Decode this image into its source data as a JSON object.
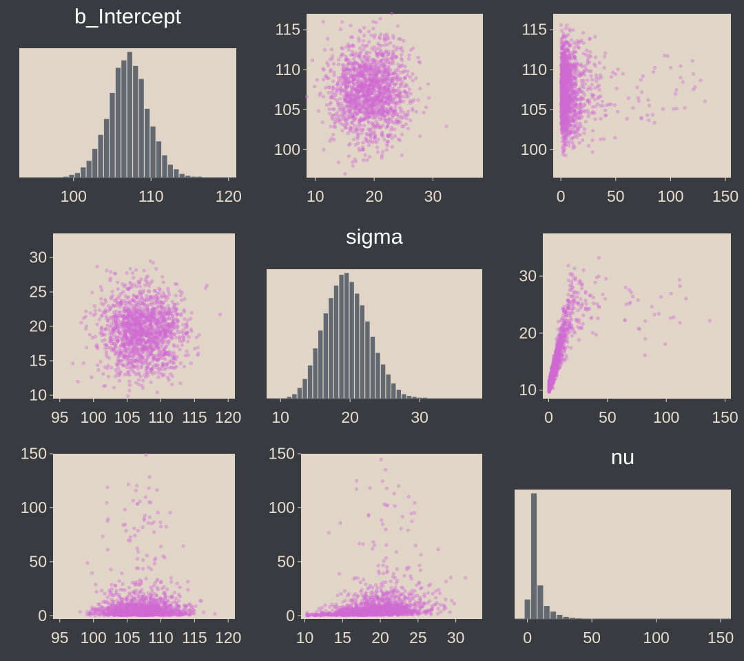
{
  "style": {
    "background": "#383b40",
    "panel_fill": "#e1d5c8",
    "bar_fill": "#636970",
    "point_color": "#d06bd3",
    "text_color": "#e6dccf",
    "title_color": "#ffffff"
  },
  "chart_data": [
    {
      "id": "hist-b-intercept",
      "type": "bar",
      "title": "b_Intercept",
      "xlim": [
        93,
        121
      ],
      "xticks": [
        100,
        110,
        120
      ],
      "bins": [
        {
          "x": 99.0,
          "v": 1
        },
        {
          "x": 99.75,
          "v": 3
        },
        {
          "x": 100.5,
          "v": 5
        },
        {
          "x": 101.25,
          "v": 11
        },
        {
          "x": 102.0,
          "v": 18
        },
        {
          "x": 102.75,
          "v": 31
        },
        {
          "x": 103.5,
          "v": 46
        },
        {
          "x": 104.25,
          "v": 63
        },
        {
          "x": 105.0,
          "v": 91
        },
        {
          "x": 105.75,
          "v": 118
        },
        {
          "x": 106.5,
          "v": 126
        },
        {
          "x": 107.25,
          "v": 135
        },
        {
          "x": 108.0,
          "v": 120
        },
        {
          "x": 108.75,
          "v": 106
        },
        {
          "x": 109.5,
          "v": 74
        },
        {
          "x": 110.25,
          "v": 55
        },
        {
          "x": 111.0,
          "v": 39
        },
        {
          "x": 111.75,
          "v": 24
        },
        {
          "x": 112.5,
          "v": 14
        },
        {
          "x": 113.25,
          "v": 9
        },
        {
          "x": 114.0,
          "v": 4
        },
        {
          "x": 114.75,
          "v": 2
        },
        {
          "x": 115.5,
          "v": 1
        },
        {
          "x": 116.25,
          "v": 1
        }
      ]
    },
    {
      "id": "scatter-sigma-vs-intercept",
      "type": "scatter",
      "xlim": [
        8.5,
        38.5
      ],
      "ylim": [
        96.5,
        117
      ],
      "xticks": [
        10,
        20,
        30
      ],
      "yticks": [
        100,
        105,
        110,
        115
      ],
      "generator": {
        "n": 1500,
        "seed": 11,
        "x": "sigma",
        "y": "b_Intercept"
      }
    },
    {
      "id": "scatter-nu-vs-intercept",
      "type": "scatter",
      "xlim": [
        -7,
        155
      ],
      "ylim": [
        96.5,
        117
      ],
      "xticks": [
        0,
        50,
        100,
        150
      ],
      "yticks": [
        100,
        105,
        110,
        115
      ],
      "generator": {
        "n": 1500,
        "seed": 23,
        "x": "nu",
        "y": "b_Intercept"
      }
    },
    {
      "id": "scatter-intercept-vs-sigma",
      "type": "scatter",
      "xlim": [
        94,
        121
      ],
      "ylim": [
        9.5,
        33.5
      ],
      "xticks": [
        95,
        100,
        105,
        110,
        115,
        120
      ],
      "yticks": [
        10,
        15,
        20,
        25,
        30
      ],
      "generator": {
        "n": 1500,
        "seed": 37,
        "x": "b_Intercept",
        "y": "sigma"
      }
    },
    {
      "id": "hist-sigma",
      "type": "bar",
      "title": "sigma",
      "xlim": [
        8,
        39
      ],
      "xticks": [
        10,
        20,
        30
      ],
      "bins": [
        {
          "x": 11.25,
          "v": 2
        },
        {
          "x": 12.0,
          "v": 5
        },
        {
          "x": 12.75,
          "v": 12
        },
        {
          "x": 13.5,
          "v": 22
        },
        {
          "x": 14.25,
          "v": 37
        },
        {
          "x": 15.0,
          "v": 56
        },
        {
          "x": 15.75,
          "v": 76
        },
        {
          "x": 16.5,
          "v": 95
        },
        {
          "x": 17.25,
          "v": 112
        },
        {
          "x": 18.0,
          "v": 126
        },
        {
          "x": 18.75,
          "v": 138
        },
        {
          "x": 19.5,
          "v": 140
        },
        {
          "x": 20.25,
          "v": 130
        },
        {
          "x": 21.0,
          "v": 117
        },
        {
          "x": 21.75,
          "v": 104
        },
        {
          "x": 22.5,
          "v": 86
        },
        {
          "x": 23.25,
          "v": 69
        },
        {
          "x": 24.0,
          "v": 51
        },
        {
          "x": 24.75,
          "v": 38
        },
        {
          "x": 25.5,
          "v": 27
        },
        {
          "x": 26.25,
          "v": 17
        },
        {
          "x": 27.0,
          "v": 10
        },
        {
          "x": 27.75,
          "v": 5
        },
        {
          "x": 28.5,
          "v": 3
        },
        {
          "x": 29.25,
          "v": 2
        },
        {
          "x": 30.0,
          "v": 1
        },
        {
          "x": 30.75,
          "v": 1
        }
      ]
    },
    {
      "id": "scatter-nu-vs-sigma",
      "type": "scatter",
      "xlim": [
        -5,
        155
      ],
      "ylim": [
        8.5,
        37.5
      ],
      "xticks": [
        0,
        50,
        100,
        150
      ],
      "yticks": [
        10,
        20,
        30
      ],
      "generator": {
        "n": 1500,
        "seed": 41,
        "x": "nu",
        "y": "sigma"
      }
    },
    {
      "id": "scatter-intercept-vs-nu",
      "type": "scatter",
      "xlim": [
        94,
        121
      ],
      "ylim": [
        -3,
        150
      ],
      "xticks": [
        95,
        100,
        105,
        110,
        115,
        120
      ],
      "yticks": [
        0,
        50,
        100,
        150
      ],
      "tick_labels_x": [
        "95",
        "100",
        "105",
        "110",
        "115",
        "120"
      ],
      "generator": {
        "n": 1500,
        "seed": 53,
        "x": "b_Intercept",
        "y": "nu"
      }
    },
    {
      "id": "scatter-sigma-vs-nu",
      "type": "scatter",
      "xlim": [
        9.5,
        33.5
      ],
      "ylim": [
        -3,
        150
      ],
      "xticks": [
        10,
        15,
        20,
        25,
        30
      ],
      "yticks": [
        0,
        50,
        100,
        150
      ],
      "generator": {
        "n": 1500,
        "seed": 67,
        "x": "sigma",
        "y": "nu"
      }
    },
    {
      "id": "hist-nu",
      "type": "bar",
      "title": "nu",
      "xlim": [
        -10,
        158
      ],
      "xticks": [
        0,
        50,
        100,
        150
      ],
      "bins": [
        {
          "x": 0,
          "v": 180
        },
        {
          "x": 5,
          "v": 1160
        },
        {
          "x": 10,
          "v": 310
        },
        {
          "x": 15,
          "v": 120
        },
        {
          "x": 20,
          "v": 68
        },
        {
          "x": 25,
          "v": 38
        },
        {
          "x": 30,
          "v": 20
        },
        {
          "x": 35,
          "v": 11
        },
        {
          "x": 40,
          "v": 6
        },
        {
          "x": 45,
          "v": 3
        },
        {
          "x": 50,
          "v": 2
        },
        {
          "x": 55,
          "v": 1
        }
      ]
    }
  ]
}
